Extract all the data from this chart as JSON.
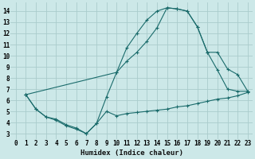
{
  "xlabel": "Humidex (Indice chaleur)",
  "xlim": [
    -0.5,
    23.5
  ],
  "ylim": [
    2.5,
    14.8
  ],
  "xticks": [
    0,
    1,
    2,
    3,
    4,
    5,
    6,
    7,
    8,
    9,
    10,
    11,
    12,
    13,
    14,
    15,
    16,
    17,
    18,
    19,
    20,
    21,
    22,
    23
  ],
  "yticks": [
    3,
    4,
    5,
    6,
    7,
    8,
    9,
    10,
    11,
    12,
    13,
    14
  ],
  "bg_color": "#cce8e8",
  "grid_color": "#aacccc",
  "line_color": "#1a6b6b",
  "line1_x": [
    1,
    2,
    3,
    4,
    5,
    6,
    7,
    8,
    9,
    10,
    11,
    12,
    13,
    14,
    15,
    16,
    17,
    18,
    19,
    20,
    21,
    22,
    23
  ],
  "line1_y": [
    6.5,
    5.2,
    4.5,
    4.2,
    3.7,
    3.4,
    3.0,
    3.9,
    6.3,
    8.5,
    10.7,
    12.0,
    13.2,
    14.0,
    14.3,
    14.2,
    14.0,
    12.6,
    10.3,
    8.7,
    7.0,
    6.8,
    6.8
  ],
  "line2_x": [
    1,
    2,
    3,
    4,
    5,
    6,
    7,
    8,
    9,
    10,
    11,
    12,
    13,
    14,
    15,
    16,
    17,
    18,
    19,
    20,
    21,
    22,
    23
  ],
  "line2_y": [
    6.5,
    5.2,
    4.5,
    4.3,
    3.8,
    3.5,
    3.0,
    3.9,
    5.0,
    4.6,
    4.8,
    4.9,
    5.0,
    5.1,
    5.2,
    5.4,
    5.5,
    5.7,
    5.9,
    6.1,
    6.2,
    6.4,
    6.7
  ],
  "line3_x": [
    1,
    10,
    11,
    12,
    13,
    14,
    15,
    16,
    17,
    18,
    19,
    20,
    21,
    22,
    23
  ],
  "line3_y": [
    6.5,
    8.5,
    9.5,
    10.3,
    11.3,
    12.5,
    14.3,
    14.2,
    14.0,
    12.6,
    10.3,
    10.3,
    8.8,
    8.3,
    6.8
  ]
}
